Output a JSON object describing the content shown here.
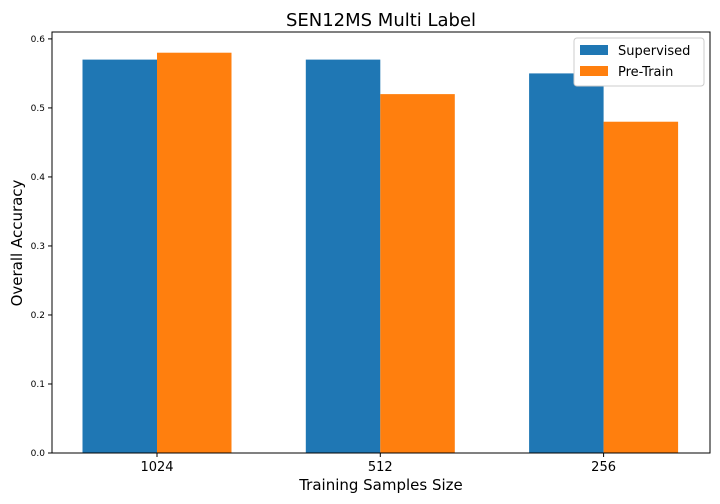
{
  "chart_data": {
    "type": "bar",
    "title": "SEN12MS Multi Label",
    "xlabel": "Training Samples Size",
    "ylabel": "Overall Accuracy",
    "categories": [
      "1024",
      "512",
      "256"
    ],
    "series": [
      {
        "name": "Supervised",
        "values": [
          0.57,
          0.57,
          0.55
        ],
        "color": "#1f77b4"
      },
      {
        "name": "Pre-Train",
        "values": [
          0.58,
          0.52,
          0.48
        ],
        "color": "#ff7f0e"
      }
    ],
    "ylim": [
      0,
      0.61
    ],
    "yticks": [
      "0.0",
      "0.1",
      "0.2",
      "0.3",
      "0.4",
      "0.5",
      "0.6"
    ],
    "ytick_values": [
      0,
      0.1,
      0.2,
      0.3,
      0.4,
      0.5,
      0.6
    ],
    "legend_position": "top-right",
    "grid": false
  }
}
